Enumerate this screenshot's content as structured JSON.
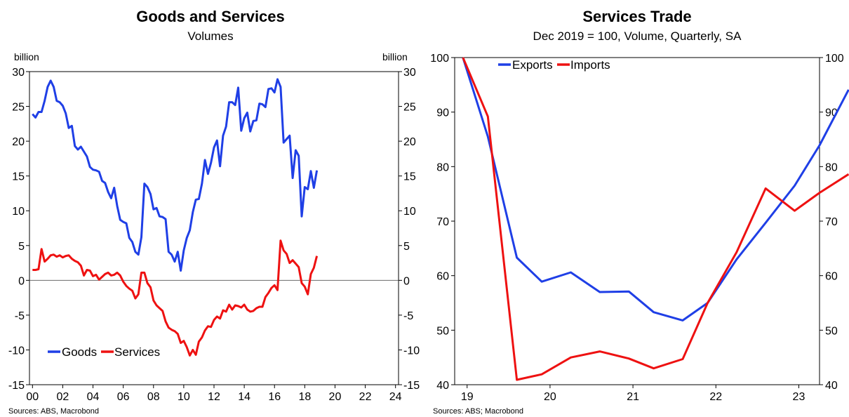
{
  "chart_data": [
    {
      "type": "line",
      "title": "Goods and Services",
      "subtitle": "Volumes",
      "left_unit": "billion",
      "right_unit": "billion",
      "source": "Sources: ABS, Macrobond",
      "xlim": [
        1999.8,
        2024.2
      ],
      "ylim": [
        -15,
        30
      ],
      "yticks": [
        -15,
        -10,
        -5,
        0,
        5,
        10,
        15,
        20,
        25,
        30
      ],
      "xticks": [
        {
          "value": 2000,
          "label": "00"
        },
        {
          "value": 2002,
          "label": "02"
        },
        {
          "value": 2004,
          "label": "04"
        },
        {
          "value": 2006,
          "label": "06"
        },
        {
          "value": 2008,
          "label": "08"
        },
        {
          "value": 2010,
          "label": "10"
        },
        {
          "value": 2012,
          "label": "12"
        },
        {
          "value": 2014,
          "label": "14"
        },
        {
          "value": 2016,
          "label": "16"
        },
        {
          "value": 2018,
          "label": "18"
        },
        {
          "value": 2020,
          "label": "20"
        },
        {
          "value": 2022,
          "label": "22"
        },
        {
          "value": 2024,
          "label": "24"
        }
      ],
      "zero_line": true,
      "legend_position": "bottom-left",
      "series": [
        {
          "name": "Goods",
          "color": "#1f3fe6",
          "points": [
            [
              2000.0,
              23.9
            ],
            [
              2000.2,
              23.4
            ],
            [
              2000.4,
              24.2
            ],
            [
              2000.6,
              24.2
            ],
            [
              2000.8,
              25.8
            ],
            [
              2001.0,
              27.8
            ],
            [
              2001.2,
              28.7
            ],
            [
              2001.4,
              27.8
            ],
            [
              2001.6,
              25.8
            ],
            [
              2001.8,
              25.6
            ],
            [
              2002.0,
              25.1
            ],
            [
              2002.2,
              24.0
            ],
            [
              2002.4,
              21.9
            ],
            [
              2002.6,
              22.2
            ],
            [
              2002.8,
              19.3
            ],
            [
              2003.0,
              18.8
            ],
            [
              2003.2,
              19.2
            ],
            [
              2003.4,
              18.5
            ],
            [
              2003.6,
              17.8
            ],
            [
              2003.8,
              16.3
            ],
            [
              2004.0,
              15.9
            ],
            [
              2004.2,
              15.8
            ],
            [
              2004.4,
              15.6
            ],
            [
              2004.6,
              14.3
            ],
            [
              2004.8,
              14.0
            ],
            [
              2005.0,
              12.7
            ],
            [
              2005.2,
              11.8
            ],
            [
              2005.4,
              13.3
            ],
            [
              2005.6,
              10.7
            ],
            [
              2005.8,
              8.7
            ],
            [
              2006.0,
              8.4
            ],
            [
              2006.2,
              8.2
            ],
            [
              2006.4,
              6.1
            ],
            [
              2006.6,
              5.5
            ],
            [
              2006.8,
              4.1
            ],
            [
              2007.0,
              3.7
            ],
            [
              2007.2,
              6.2
            ],
            [
              2007.4,
              13.9
            ],
            [
              2007.6,
              13.4
            ],
            [
              2007.8,
              12.4
            ],
            [
              2008.0,
              10.2
            ],
            [
              2008.2,
              10.4
            ],
            [
              2008.4,
              9.2
            ],
            [
              2008.6,
              9.1
            ],
            [
              2008.8,
              8.8
            ],
            [
              2009.0,
              4.1
            ],
            [
              2009.2,
              3.7
            ],
            [
              2009.4,
              2.7
            ],
            [
              2009.6,
              4.1
            ],
            [
              2009.8,
              1.4
            ],
            [
              2010.0,
              4.3
            ],
            [
              2010.2,
              6.1
            ],
            [
              2010.4,
              7.2
            ],
            [
              2010.6,
              9.8
            ],
            [
              2010.8,
              11.6
            ],
            [
              2011.0,
              11.7
            ],
            [
              2011.2,
              13.9
            ],
            [
              2011.4,
              17.3
            ],
            [
              2011.6,
              15.3
            ],
            [
              2011.8,
              16.9
            ],
            [
              2012.0,
              19.1
            ],
            [
              2012.2,
              20.1
            ],
            [
              2012.4,
              16.4
            ],
            [
              2012.6,
              20.8
            ],
            [
              2012.8,
              22.1
            ],
            [
              2013.0,
              25.6
            ],
            [
              2013.2,
              25.6
            ],
            [
              2013.4,
              25.2
            ],
            [
              2013.6,
              27.7
            ],
            [
              2013.8,
              21.5
            ],
            [
              2014.0,
              23.3
            ],
            [
              2014.2,
              24.1
            ],
            [
              2014.4,
              21.4
            ],
            [
              2014.6,
              22.9
            ],
            [
              2014.8,
              23.0
            ],
            [
              2015.0,
              25.4
            ],
            [
              2015.2,
              25.3
            ],
            [
              2015.4,
              24.9
            ],
            [
              2015.6,
              27.5
            ],
            [
              2015.8,
              27.6
            ],
            [
              2016.0,
              27.0
            ],
            [
              2016.2,
              28.9
            ],
            [
              2016.4,
              27.8
            ],
            [
              2016.6,
              19.8
            ],
            [
              2016.8,
              20.3
            ],
            [
              2017.0,
              20.8
            ],
            [
              2017.2,
              14.7
            ],
            [
              2017.4,
              18.7
            ],
            [
              2017.6,
              17.9
            ],
            [
              2017.8,
              9.2
            ],
            [
              2018.0,
              13.4
            ],
            [
              2018.2,
              13.1
            ],
            [
              2018.4,
              15.7
            ],
            [
              2018.6,
              13.3
            ],
            [
              2018.8,
              15.8
            ]
          ]
        },
        {
          "name": "Services",
          "color": "#ee1111",
          "points": [
            [
              2000.0,
              1.5
            ],
            [
              2000.2,
              1.5
            ],
            [
              2000.4,
              1.6
            ],
            [
              2000.6,
              4.5
            ],
            [
              2000.8,
              2.7
            ],
            [
              2001.0,
              3.1
            ],
            [
              2001.2,
              3.6
            ],
            [
              2001.4,
              3.7
            ],
            [
              2001.6,
              3.4
            ],
            [
              2001.8,
              3.6
            ],
            [
              2002.0,
              3.3
            ],
            [
              2002.2,
              3.5
            ],
            [
              2002.4,
              3.6
            ],
            [
              2002.6,
              3.1
            ],
            [
              2002.8,
              2.8
            ],
            [
              2003.0,
              2.6
            ],
            [
              2003.2,
              2.1
            ],
            [
              2003.4,
              0.7
            ],
            [
              2003.6,
              1.5
            ],
            [
              2003.8,
              1.4
            ],
            [
              2004.0,
              0.6
            ],
            [
              2004.2,
              0.8
            ],
            [
              2004.4,
              0.1
            ],
            [
              2004.6,
              0.5
            ],
            [
              2004.8,
              0.9
            ],
            [
              2005.0,
              1.1
            ],
            [
              2005.2,
              0.7
            ],
            [
              2005.4,
              0.8
            ],
            [
              2005.6,
              1.1
            ],
            [
              2005.8,
              0.7
            ],
            [
              2006.0,
              -0.2
            ],
            [
              2006.2,
              -0.8
            ],
            [
              2006.4,
              -1.2
            ],
            [
              2006.6,
              -1.5
            ],
            [
              2006.8,
              -2.6
            ],
            [
              2007.0,
              -2.0
            ],
            [
              2007.2,
              1.1
            ],
            [
              2007.4,
              1.1
            ],
            [
              2007.6,
              -0.4
            ],
            [
              2007.8,
              -1.0
            ],
            [
              2008.0,
              -2.9
            ],
            [
              2008.2,
              -3.6
            ],
            [
              2008.4,
              -4.0
            ],
            [
              2008.6,
              -4.4
            ],
            [
              2008.8,
              -5.9
            ],
            [
              2009.0,
              -6.8
            ],
            [
              2009.2,
              -7.1
            ],
            [
              2009.4,
              -7.3
            ],
            [
              2009.6,
              -7.7
            ],
            [
              2009.8,
              -9.0
            ],
            [
              2010.0,
              -8.7
            ],
            [
              2010.2,
              -9.6
            ],
            [
              2010.4,
              -10.8
            ],
            [
              2010.6,
              -10.0
            ],
            [
              2010.8,
              -10.7
            ],
            [
              2011.0,
              -8.8
            ],
            [
              2011.2,
              -8.2
            ],
            [
              2011.4,
              -7.2
            ],
            [
              2011.6,
              -6.6
            ],
            [
              2011.8,
              -6.7
            ],
            [
              2012.0,
              -5.7
            ],
            [
              2012.2,
              -5.2
            ],
            [
              2012.4,
              -5.5
            ],
            [
              2012.6,
              -4.3
            ],
            [
              2012.8,
              -4.5
            ],
            [
              2013.0,
              -3.5
            ],
            [
              2013.2,
              -4.2
            ],
            [
              2013.4,
              -3.6
            ],
            [
              2013.6,
              -3.7
            ],
            [
              2013.8,
              -3.9
            ],
            [
              2014.0,
              -3.5
            ],
            [
              2014.2,
              -4.2
            ],
            [
              2014.4,
              -4.5
            ],
            [
              2014.6,
              -4.4
            ],
            [
              2014.8,
              -4.0
            ],
            [
              2015.0,
              -3.8
            ],
            [
              2015.2,
              -3.8
            ],
            [
              2015.4,
              -2.4
            ],
            [
              2015.6,
              -1.8
            ],
            [
              2015.8,
              -1.1
            ],
            [
              2016.0,
              -0.7
            ],
            [
              2016.2,
              -1.4
            ],
            [
              2016.4,
              5.7
            ],
            [
              2016.6,
              4.3
            ],
            [
              2016.8,
              3.8
            ],
            [
              2017.0,
              2.5
            ],
            [
              2017.2,
              2.9
            ],
            [
              2017.4,
              2.4
            ],
            [
              2017.6,
              1.9
            ],
            [
              2017.8,
              -0.4
            ],
            [
              2018.0,
              -0.9
            ],
            [
              2018.2,
              -2.0
            ],
            [
              2018.4,
              0.9
            ],
            [
              2018.6,
              1.8
            ],
            [
              2018.8,
              3.5
            ]
          ]
        }
      ]
    },
    {
      "type": "line",
      "title": "Services Trade",
      "subtitle": "Dec 2019 = 100, Volume, Quarterly, SA",
      "source": "Sources: ABS; Macrobond",
      "xlim": [
        2018.85,
        2023.25
      ],
      "ylim": [
        40,
        100
      ],
      "yticks": [
        40,
        50,
        60,
        70,
        80,
        90,
        100
      ],
      "xticks": [
        {
          "value": 2019,
          "label": "19"
        },
        {
          "value": 2020,
          "label": "20"
        },
        {
          "value": 2021,
          "label": "21"
        },
        {
          "value": 2022,
          "label": "22"
        },
        {
          "value": 2023,
          "label": "23"
        }
      ],
      "legend_position": "top-left",
      "series": [
        {
          "name": "Exports",
          "color": "#1f3fe6",
          "points": [
            [
              2018.95,
              100.0
            ],
            [
              2019.25,
              85.5
            ],
            [
              2019.6,
              63.3
            ],
            [
              2019.9,
              58.9
            ],
            [
              2020.25,
              60.6
            ],
            [
              2020.6,
              57.0
            ],
            [
              2020.95,
              57.1
            ],
            [
              2021.25,
              53.3
            ],
            [
              2021.6,
              51.8
            ],
            [
              2021.9,
              55.0
            ],
            [
              2022.25,
              63.0
            ],
            [
              2022.6,
              69.7
            ],
            [
              2022.95,
              76.5
            ],
            [
              2023.25,
              83.9
            ],
            [
              2023.6,
              94.1
            ]
          ]
        },
        {
          "name": "Imports",
          "color": "#ee1111",
          "points": [
            [
              2018.95,
              100.0
            ],
            [
              2019.25,
              89.2
            ],
            [
              2019.6,
              40.9
            ],
            [
              2019.9,
              41.9
            ],
            [
              2020.25,
              45.0
            ],
            [
              2020.6,
              46.1
            ],
            [
              2020.95,
              44.8
            ],
            [
              2021.25,
              43.0
            ],
            [
              2021.6,
              44.7
            ],
            [
              2021.9,
              55.0
            ],
            [
              2022.25,
              64.3
            ],
            [
              2022.6,
              76.0
            ],
            [
              2022.95,
              71.9
            ],
            [
              2023.25,
              75.2
            ],
            [
              2023.6,
              78.6
            ]
          ]
        }
      ]
    }
  ]
}
